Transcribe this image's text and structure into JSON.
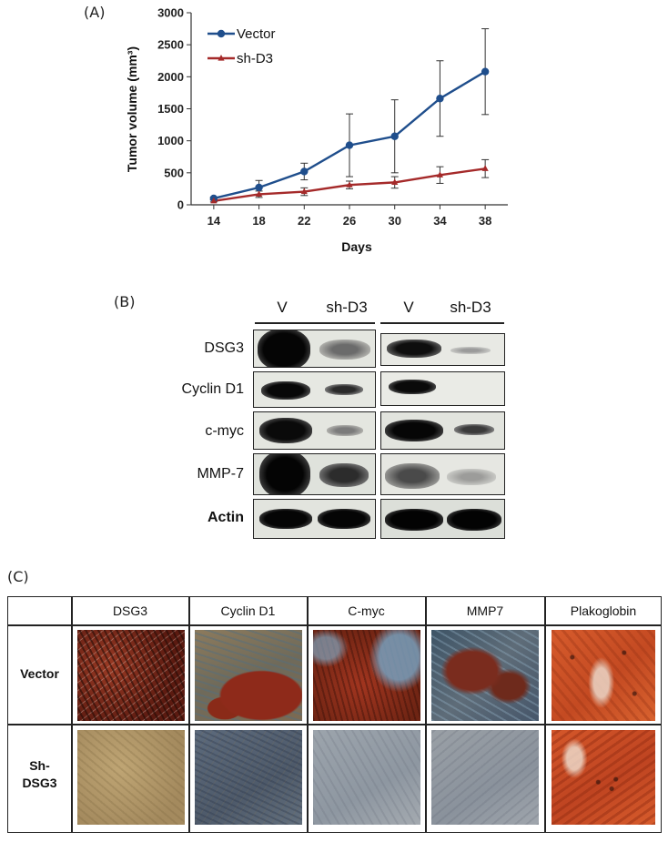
{
  "panels": {
    "a": "(A)",
    "b": "(B)",
    "c": "(C)"
  },
  "chart_data": {
    "type": "line",
    "x": [
      14,
      18,
      22,
      26,
      30,
      34,
      38
    ],
    "xlabel": "Days",
    "ylabel": "Tumor volume (mm³)",
    "ylim": [
      0,
      3000
    ],
    "yticks": [
      0,
      500,
      1000,
      1500,
      2000,
      2500,
      3000
    ],
    "legend_position": "top-left",
    "series": [
      {
        "name": "Vector",
        "color": "#1f4e8c",
        "marker": "circle",
        "values": [
          100,
          270,
          520,
          930,
          1070,
          1660,
          2080
        ],
        "error": [
          20,
          110,
          130,
          490,
          570,
          590,
          670
        ]
      },
      {
        "name": "sh-D3",
        "color": "#a52a2a",
        "marker": "triangle",
        "values": [
          60,
          165,
          205,
          310,
          350,
          465,
          565
        ],
        "error": [
          15,
          50,
          60,
          60,
          90,
          130,
          140
        ]
      }
    ]
  },
  "western_blot": {
    "lane_headers": [
      "V",
      "sh-D3",
      "V",
      "sh-D3"
    ],
    "rows": [
      "DSG3",
      "Cyclin D1",
      "c-myc",
      "MMP-7",
      "Actin"
    ]
  },
  "ihc": {
    "columns": [
      "DSG3",
      "Cyclin D1",
      "C-myc",
      "MMP7",
      "Plakoglobin"
    ],
    "rows": [
      "Vector",
      "Sh-\nDSG3"
    ],
    "row_labels": [
      [
        "Vector"
      ],
      [
        "Sh-",
        "DSG3"
      ]
    ]
  }
}
